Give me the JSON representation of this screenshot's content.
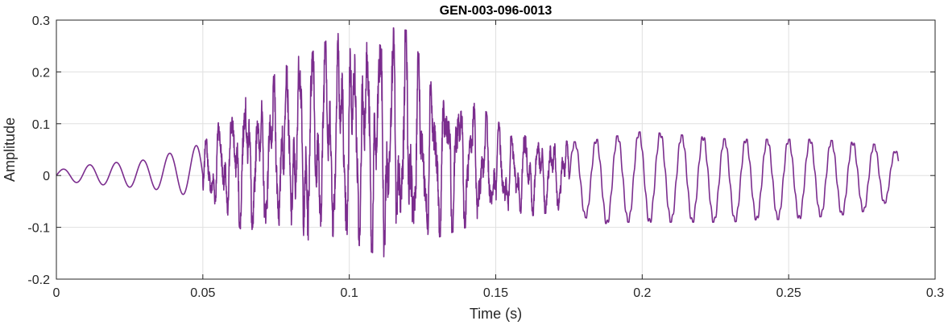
{
  "chart_data": {
    "type": "line",
    "title": "GEN-003-096-0013",
    "xlabel": "Time (s)",
    "ylabel": "Amplitude",
    "xlim": [
      0,
      0.3
    ],
    "ylim": [
      -0.2,
      0.3
    ],
    "xticks": [
      0,
      0.05,
      0.1,
      0.15,
      0.2,
      0.25,
      0.3
    ],
    "xtick_labels": [
      "0",
      "0.05",
      "0.1",
      "0.15",
      "0.2",
      "0.25",
      "0.3"
    ],
    "yticks": [
      -0.2,
      -0.1,
      0,
      0.1,
      0.2,
      0.3
    ],
    "ytick_labels": [
      "-0.2",
      "-0.1",
      "0",
      "0.1",
      "0.2",
      "0.3"
    ],
    "grid": true,
    "line_color": "#7b2d8e",
    "series": [
      {
        "x": [
          0,
          0.01,
          0.02,
          0.03,
          0.04,
          0.045,
          0.05,
          0.055,
          0.06,
          0.065,
          0.07,
          0.075,
          0.08,
          0.085,
          0.09,
          0.095,
          0.1,
          0.105,
          0.11,
          0.115,
          0.12,
          0.125,
          0.13,
          0.135,
          0.14,
          0.145,
          0.15,
          0.155,
          0.16,
          0.165,
          0.17,
          0.175,
          0.18,
          0.185,
          0.19,
          0.195,
          0.2,
          0.21,
          0.22,
          0.23,
          0.24,
          0.25,
          0.26,
          0.27,
          0.28,
          0.2875
        ],
        "envelope_max": [
          0.01,
          0.02,
          0.025,
          0.03,
          0.045,
          0.055,
          0.06,
          0.1,
          0.13,
          0.18,
          0.15,
          0.2,
          0.22,
          0.24,
          0.285,
          0.28,
          0.28,
          0.285,
          0.285,
          0.285,
          0.28,
          0.22,
          0.18,
          0.19,
          0.15,
          0.13,
          0.11,
          0.075,
          0.09,
          0.08,
          0.075,
          0.065,
          0.065,
          0.07,
          0.075,
          0.08,
          0.085,
          0.08,
          0.075,
          0.07,
          0.07,
          0.07,
          0.07,
          0.065,
          0.06,
          0.045
        ],
        "envelope_min": [
          -0.01,
          -0.015,
          -0.02,
          -0.025,
          -0.03,
          -0.04,
          -0.06,
          -0.07,
          -0.08,
          -0.12,
          -0.095,
          -0.1,
          -0.1,
          -0.15,
          -0.125,
          -0.12,
          -0.125,
          -0.14,
          -0.155,
          -0.16,
          -0.17,
          -0.13,
          -0.12,
          -0.11,
          -0.1,
          -0.085,
          -0.09,
          -0.075,
          -0.08,
          -0.075,
          -0.07,
          -0.06,
          -0.08,
          -0.09,
          -0.095,
          -0.09,
          -0.09,
          -0.09,
          -0.09,
          -0.09,
          -0.085,
          -0.085,
          -0.08,
          -0.075,
          -0.065,
          -0.035
        ]
      }
    ]
  }
}
